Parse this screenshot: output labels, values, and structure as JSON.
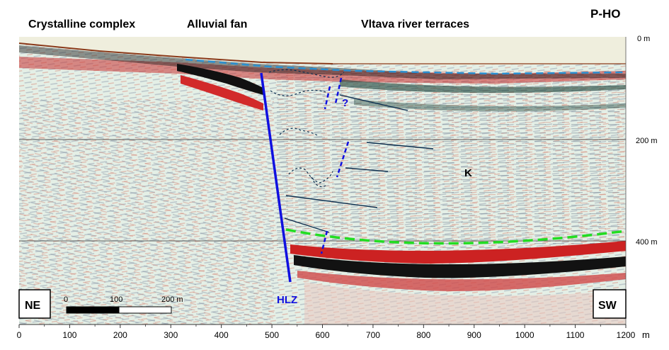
{
  "header": {
    "region_labels": [
      "Crystalline complex",
      "Alluvial fan",
      "Vltava river terraces"
    ],
    "profile_id": "P-HO"
  },
  "depth_axis": {
    "ticks": [
      "0 m",
      "200 m",
      "400 m"
    ]
  },
  "distance_axis": {
    "ticks": [
      "0",
      "100",
      "200",
      "300",
      "400",
      "500",
      "600",
      "700",
      "800",
      "900",
      "1000",
      "1100",
      "1200"
    ],
    "unit": "m"
  },
  "scale_bar": {
    "ticks": [
      "0",
      "100",
      "200 m"
    ]
  },
  "orientation": {
    "left": "NE",
    "right": "SW"
  },
  "annotations": {
    "fault": "HLZ",
    "unit": "K",
    "question": "?"
  },
  "colors": {
    "fault_line": "#1010e0",
    "surface_line": "#8b3a1a",
    "water_table": "#2a8fd0",
    "basin_base": "#22dd22",
    "reflectors": "#0d3050",
    "positive_amp": "#c81e1e",
    "negative_amp": "#111111",
    "background_cream": "#efeedd",
    "background_mint": "#d8ece4"
  }
}
